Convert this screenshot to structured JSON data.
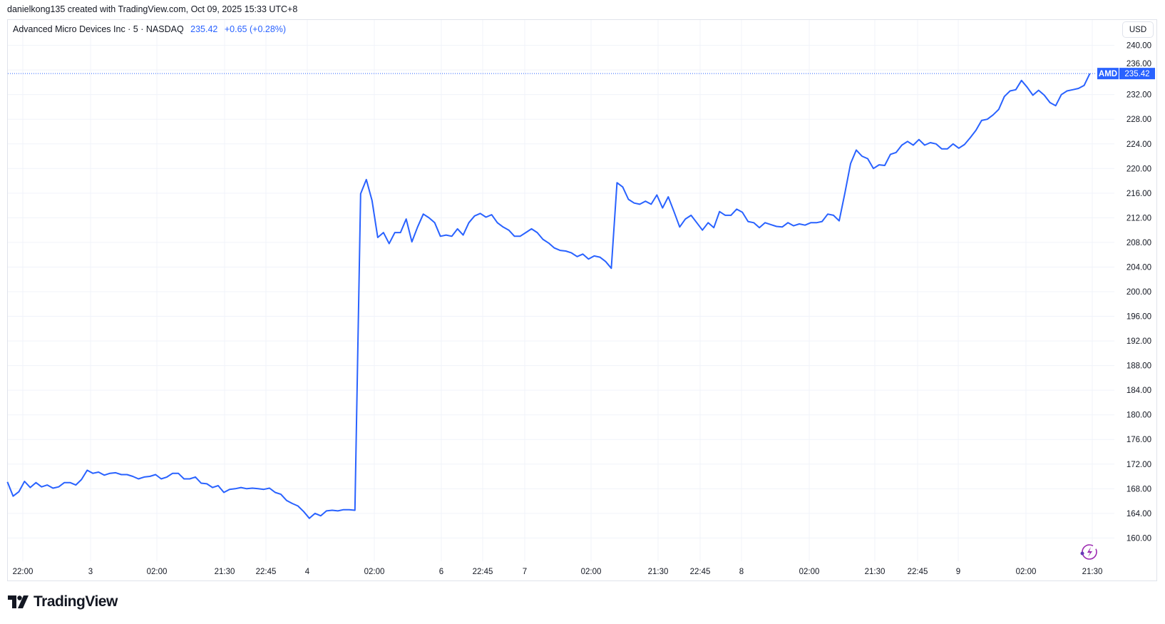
{
  "header": {
    "credit": "danielkong135 created with TradingView.com, Oct 09, 2025 15:33 UTC+8"
  },
  "legend": {
    "symbol_desc": "Advanced Micro Devices Inc · 5 · NASDAQ",
    "last": "235.42",
    "change": "+0.65 (+0.28%)"
  },
  "currency_button": "USD",
  "logo_text": "TradingView",
  "colors": {
    "line": "#2962ff",
    "grid": "#f0f3fa",
    "alert_icon": "#9c27b0"
  },
  "icons": [
    "tradingview-logo-icon",
    "lightning-alert-icon"
  ],
  "chart_data": {
    "type": "line",
    "title": "Advanced Micro Devices Inc · 5 · NASDAQ",
    "symbol": "AMD",
    "last_price": 235.42,
    "last_price_label": "235.42",
    "symbol_label": "AMD",
    "ylim": [
      158,
      242
    ],
    "yticks": [
      "240.00",
      "236.00",
      "232.00",
      "228.00",
      "224.00",
      "220.00",
      "216.00",
      "212.00",
      "208.00",
      "204.00",
      "200.00",
      "196.00",
      "192.00",
      "188.00",
      "184.00",
      "180.00",
      "176.00",
      "172.00",
      "168.00",
      "164.00",
      "160.00"
    ],
    "xticks": [
      "22:00",
      "3",
      "02:00",
      "21:30",
      "22:45",
      "4",
      "02:00",
      "6",
      "22:45",
      "7",
      "02:00",
      "21:30",
      "22:45",
      "8",
      "02:00",
      "21:30",
      "22:45",
      "9",
      "02:00",
      "21:30"
    ],
    "grid": true,
    "values": [
      169.1,
      166.8,
      167.5,
      169.2,
      168.2,
      169.0,
      168.3,
      168.6,
      168.1,
      168.3,
      169.0,
      169.0,
      168.6,
      169.5,
      171.0,
      170.5,
      170.7,
      170.2,
      170.5,
      170.6,
      170.3,
      170.3,
      170.0,
      169.6,
      169.9,
      170.0,
      170.3,
      169.6,
      169.9,
      170.5,
      170.5,
      169.6,
      169.6,
      169.9,
      168.9,
      168.8,
      168.2,
      168.5,
      167.4,
      167.9,
      168.0,
      168.2,
      168.0,
      168.1,
      168.0,
      167.9,
      168.1,
      167.4,
      167.1,
      166.1,
      165.6,
      165.2,
      164.3,
      163.2,
      164.0,
      163.6,
      164.4,
      164.5,
      164.4,
      164.6,
      164.6,
      164.5,
      215.9,
      218.2,
      214.8,
      208.8,
      209.6,
      207.8,
      209.6,
      209.6,
      211.8,
      208.1,
      210.5,
      212.6,
      212.0,
      211.2,
      209.0,
      209.2,
      209.0,
      210.2,
      209.2,
      211.2,
      212.3,
      212.7,
      212.1,
      212.5,
      211.2,
      210.5,
      210.0,
      209.0,
      209.0,
      209.6,
      210.2,
      209.6,
      208.5,
      207.9,
      207.1,
      206.7,
      206.6,
      206.3,
      205.7,
      206.1,
      205.3,
      205.8,
      205.6,
      204.9,
      203.8,
      217.7,
      217.0,
      215.0,
      214.4,
      214.2,
      214.7,
      214.2,
      215.7,
      213.6,
      215.4,
      213.0,
      210.5,
      211.8,
      212.4,
      211.2,
      210.0,
      211.2,
      210.4,
      213.0,
      212.4,
      212.4,
      213.4,
      212.9,
      211.4,
      211.2,
      210.4,
      211.2,
      210.9,
      210.6,
      210.5,
      211.2,
      210.7,
      211.0,
      210.8,
      211.2,
      211.2,
      211.4,
      212.6,
      212.4,
      211.5,
      216.0,
      220.8,
      223.0,
      222.0,
      221.6,
      220.0,
      220.6,
      220.5,
      222.3,
      222.6,
      223.8,
      224.4,
      223.8,
      224.7,
      223.8,
      224.2,
      224.0,
      223.2,
      223.2,
      224.0,
      223.3,
      223.9,
      225.0,
      226.2,
      227.8,
      228.0,
      228.7,
      229.6,
      231.7,
      232.6,
      232.8,
      234.3,
      233.2,
      231.9,
      232.7,
      231.9,
      230.7,
      230.2,
      232.0,
      232.6,
      232.8,
      233.0,
      233.5,
      235.42
    ]
  }
}
